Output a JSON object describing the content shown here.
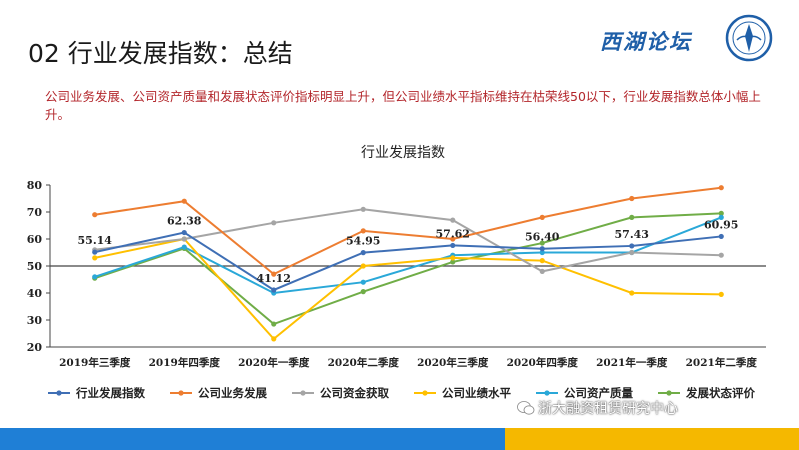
{
  "slide": {
    "title": "02 行业发展指数：总结",
    "summary": "公司业务发展、公司资产质量和发展状态评价指标明显上升，但公司业绩水平指标维持在枯荣线50以下，行业发展指数总体小幅上升。",
    "logo_text": "西湖论坛",
    "watermark": "浙大融资租赁研究中心"
  },
  "colors": {
    "accent": "#b3262b",
    "bar_blue": "#1f7fd6",
    "bar_yellow": "#f5b800"
  },
  "chart_data": {
    "type": "line",
    "title": "行业发展指数",
    "categories": [
      "2019年三季度",
      "2019年四季度",
      "2020年一季度",
      "2020年二季度",
      "2020年三季度",
      "2020年四季度",
      "2021年一季度",
      "2021年二季度"
    ],
    "ylim": [
      20,
      80
    ],
    "yticks": [
      20,
      30,
      40,
      50,
      60,
      70,
      80
    ],
    "reference_line": 50,
    "grid": false,
    "legend_position": "bottom",
    "series": [
      {
        "name": "行业发展指数",
        "color": "#3f6fb5",
        "values": [
          55.14,
          62.38,
          41.12,
          54.95,
          57.62,
          56.4,
          57.43,
          60.95
        ],
        "labels": [
          "55.14",
          "62.38",
          "41.12",
          "54.95",
          "57.62",
          "56.40",
          "57.43",
          "60.95"
        ]
      },
      {
        "name": "公司业务发展",
        "color": "#ed7d31",
        "values": [
          69,
          74,
          47,
          63,
          60,
          68,
          75,
          79
        ]
      },
      {
        "name": "公司资金获取",
        "color": "#a5a5a5",
        "values": [
          56,
          60,
          66,
          71,
          67,
          48,
          55,
          54
        ]
      },
      {
        "name": "公司业绩水平",
        "color": "#ffc000",
        "values": [
          53,
          60,
          23,
          50,
          53,
          52,
          40,
          39.5
        ]
      },
      {
        "name": "公司资产质量",
        "color": "#2aa8d8",
        "values": [
          46,
          57,
          40,
          44,
          54,
          55,
          55,
          68
        ]
      },
      {
        "name": "发展状态评价",
        "color": "#70ad47",
        "values": [
          45.5,
          56.5,
          28.5,
          40.5,
          51.5,
          58.5,
          68,
          69.5
        ]
      }
    ]
  }
}
